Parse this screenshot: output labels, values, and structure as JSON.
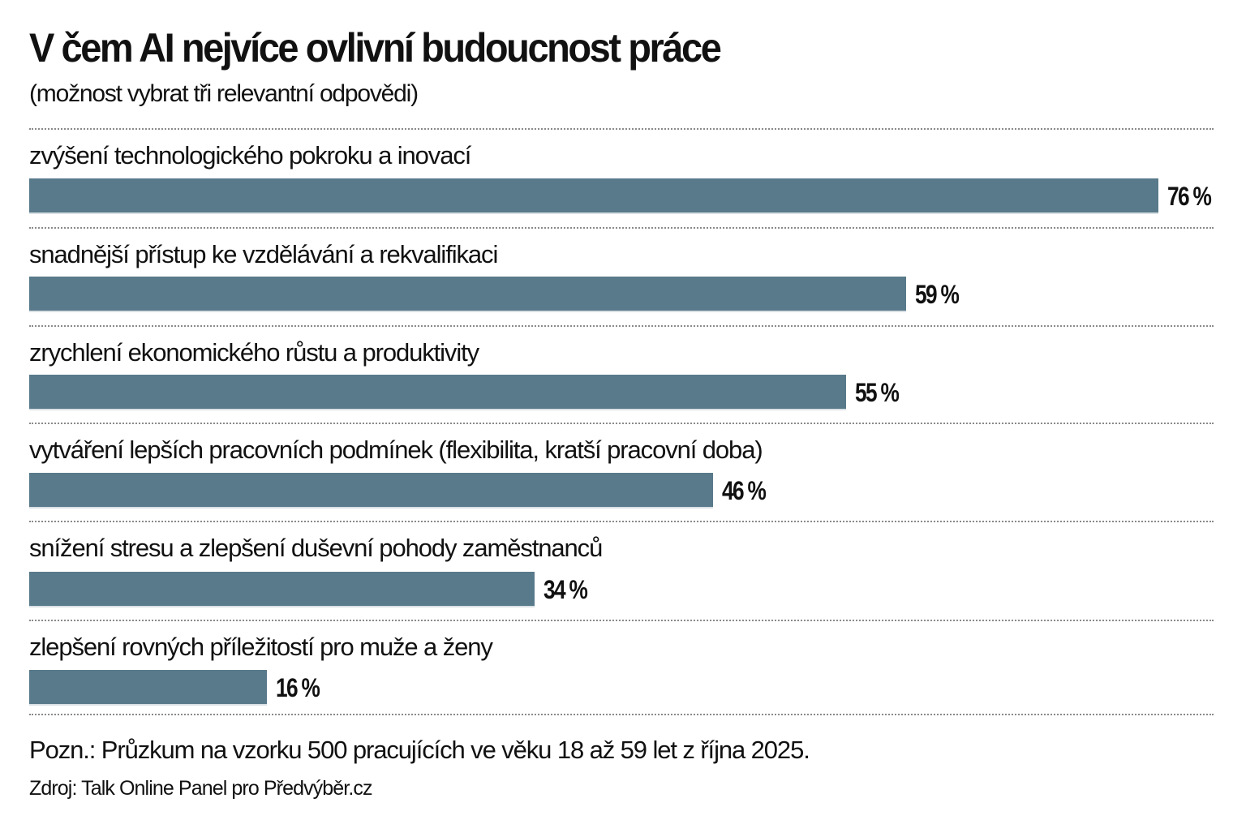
{
  "header": {
    "title": "V čem AI nejvíce ovlivní budoucnost práce",
    "subtitle": "(možnost vybrat tři relevantní odpovědi)"
  },
  "colors": {
    "bar": "#587a8a",
    "text": "#111111",
    "divider": "#8a8a8a"
  },
  "rows": [
    {
      "label": "zvýšení technologického pokroku a inovací",
      "value": 76,
      "value_label": "76 %"
    },
    {
      "label": "snadnější přístup ke vzdělávání a rekvalifikaci",
      "value": 59,
      "value_label": "59 %"
    },
    {
      "label": "zrychlení ekonomického růstu a produktivity",
      "value": 55,
      "value_label": "55 %"
    },
    {
      "label": "vytváření lepších pracovních podmínek (flexibilita, kratší pracovní doba)",
      "value": 46,
      "value_label": "46 %"
    },
    {
      "label": "snížení stresu a zlepšení duševní pohody zaměstnanců",
      "value": 34,
      "value_label": "34 %"
    },
    {
      "label": "zlepšení rovných příležitostí pro muže a ženy",
      "value": 16,
      "value_label": "16 %"
    }
  ],
  "footer": {
    "note": "Pozn.: Průzkum na vzorku 500 pracujících ve věku 18 až 59 let z října 2025.",
    "source": "Zdroj: Talk Online Panel pro Předvýběr.cz"
  },
  "chart_data": {
    "type": "bar",
    "orientation": "horizontal",
    "title": "V čem AI nejvíce ovlivní budoucnost práce",
    "subtitle": "(možnost vybrat tři relevantní odpovědi)",
    "categories": [
      "zvýšení technologického pokroku a inovací",
      "snadnější přístup ke vzdělávání a rekvalifikaci",
      "zrychlení ekonomického růstu a produktivity",
      "vytváření lepších pracovních podmínek (flexibilita, kratší pracovní doba)",
      "snížení stresu a zlepšení duševní pohody zaměstnanců",
      "zlepšení rovných příležitostí pro muže a ženy"
    ],
    "values": [
      76,
      59,
      55,
      46,
      34,
      16
    ],
    "unit": "%",
    "xlabel": "",
    "ylabel": "",
    "xlim": [
      0,
      100
    ],
    "grid": false,
    "legend": null,
    "data_labels": true,
    "bar_color": "#587a8a",
    "notes": [
      "Pozn.: Průzkum na vzorku 500 pracujících ve věku 18 až 59 let z října 2025.",
      "Zdroj: Talk Online Panel pro Předvýběr.cz"
    ]
  }
}
